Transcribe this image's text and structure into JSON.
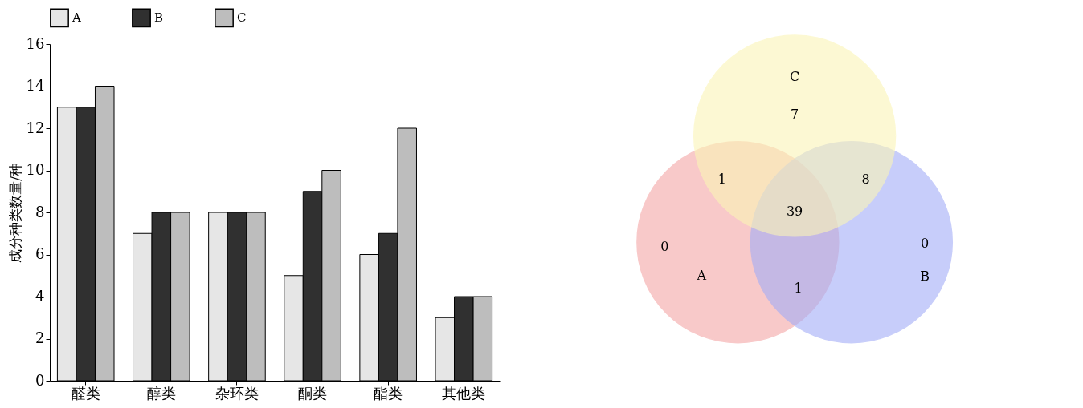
{
  "chart_data": [
    {
      "type": "bar",
      "ylabel": "成分种类数量/种",
      "categories": [
        "醛类",
        "醇类",
        "杂环类",
        "酮类",
        "酯类",
        "其他类"
      ],
      "series": [
        {
          "name": "A",
          "color": "#e6e6e6",
          "values": [
            13,
            7,
            8,
            5,
            6,
            3
          ]
        },
        {
          "name": "B",
          "color": "#303030",
          "values": [
            13,
            8,
            8,
            9,
            7,
            4
          ]
        },
        {
          "name": "C",
          "color": "#bdbdbd",
          "values": [
            14,
            8,
            8,
            10,
            12,
            4
          ]
        }
      ],
      "ylim": [
        0,
        16
      ],
      "yticks": [
        0,
        2,
        4,
        6,
        8,
        10,
        12,
        14,
        16
      ],
      "grid": false,
      "legend": "top"
    },
    {
      "type": "other",
      "annotations": [
        "A",
        "B",
        "C",
        "0",
        "0",
        "7",
        "1",
        "1",
        "8",
        "39"
      ],
      "colors": [
        "#f4a6a6",
        "#a3adf7",
        "#fbf5b6"
      ]
    }
  ]
}
